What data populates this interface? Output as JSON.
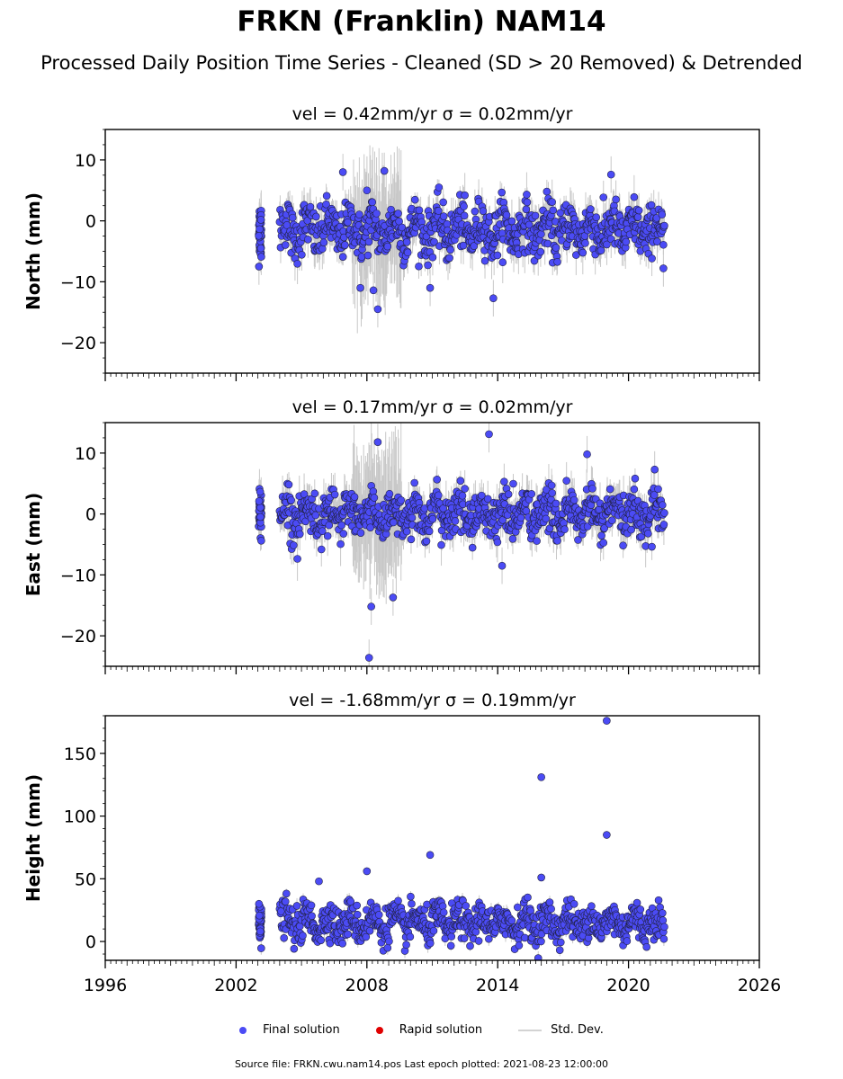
{
  "header": {
    "title": "FRKN (Franklin) NAM14",
    "subtitle": "Processed Daily Position Time Series - Cleaned (SD > 20 Removed) & Detrended"
  },
  "legend": {
    "final": "Final solution",
    "rapid": "Rapid solution",
    "std": "Std. Dev."
  },
  "footer": {
    "source": "Source file: FRKN.cwu.nam14.pos  Last epoch plotted: 2021-08-23 12:00:00"
  },
  "colors": {
    "final": "#4b4bf5",
    "rapid": "#e00000",
    "std": "#c8c8c8"
  },
  "chart_data": [
    {
      "type": "scatter",
      "title": "vel = 0.42mm/yr   σ = 0.02mm/yr",
      "ylabel": "North (mm)",
      "xlim": [
        1996,
        2026
      ],
      "ylim": [
        -25,
        15
      ],
      "yticks": [
        10,
        0,
        -10,
        -20
      ],
      "series": [
        {
          "name": "Final solution",
          "data_range": [
            2003.0,
            2021.65
          ],
          "typical_spread": [
            -6,
            3
          ],
          "center": -1.5,
          "notable_points": [
            [
              2003.05,
              -7.5
            ],
            [
              2006.9,
              8.0
            ],
            [
              2008.0,
              5.0
            ],
            [
              2007.7,
              -11.0
            ],
            [
              2008.8,
              8.2
            ],
            [
              2008.3,
              -11.4
            ],
            [
              2008.5,
              -14.5
            ],
            [
              2010.9,
              -11.0
            ],
            [
              2013.8,
              -12.7
            ],
            [
              2019.2,
              7.6
            ],
            [
              2021.6,
              -7.8
            ]
          ]
        }
      ]
    },
    {
      "type": "scatter",
      "title": "vel = 0.17mm/yr   σ = 0.02mm/yr",
      "ylabel": "East (mm)",
      "xlim": [
        1996,
        2026
      ],
      "ylim": [
        -25,
        15
      ],
      "yticks": [
        10,
        0,
        -10,
        -20
      ],
      "series": [
        {
          "name": "Final solution",
          "data_range": [
            2003.0,
            2021.65
          ],
          "typical_spread": [
            -4,
            4
          ],
          "center": 0,
          "notable_points": [
            [
              2008.5,
              11.8
            ],
            [
              2013.6,
              13.1
            ],
            [
              2018.1,
              9.8
            ],
            [
              2008.2,
              -15.2
            ],
            [
              2008.1,
              -23.6
            ],
            [
              2009.2,
              -13.7
            ],
            [
              2014.2,
              -8.5
            ],
            [
              2021.2,
              7.3
            ]
          ]
        }
      ]
    },
    {
      "type": "scatter",
      "title": "vel = -1.68mm/yr   σ = 0.19mm/yr",
      "ylabel": "Height (mm)",
      "xlabel": "",
      "xlim": [
        1996,
        2026
      ],
      "ylim": [
        -15,
        180
      ],
      "yticks": [
        150,
        100,
        50,
        0
      ],
      "xticks": [
        "1996",
        "2002",
        "2008",
        "2014",
        "2020",
        "2026"
      ],
      "series": [
        {
          "name": "Final solution",
          "data_range": [
            2003.0,
            2021.65
          ],
          "typical_spread": [
            0,
            32
          ],
          "center": 15,
          "notable_points": [
            [
              2019.0,
              176
            ],
            [
              2016.0,
              131
            ],
            [
              2019.0,
              85
            ],
            [
              2010.9,
              69
            ],
            [
              2016.0,
              51
            ],
            [
              2008.0,
              56
            ],
            [
              2005.8,
              48
            ],
            [
              2003.05,
              30
            ]
          ]
        }
      ]
    }
  ]
}
